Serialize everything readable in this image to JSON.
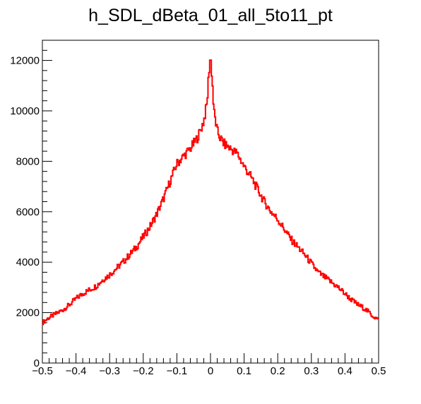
{
  "chart_data": {
    "type": "line",
    "style": "step-histogram",
    "title": "h_SDL_dBeta_01_all_5to11_pt",
    "xlabel": "",
    "ylabel": "",
    "xlim": [
      -0.5,
      0.5
    ],
    "ylim": [
      0,
      12800
    ],
    "grid": false,
    "legend": "none",
    "x_ticks": [
      "−0.5",
      "−0.4",
      "−0.3",
      "−0.2",
      "−0.1",
      "0",
      "0.1",
      "0.2",
      "0.3",
      "0.4",
      "0.5"
    ],
    "x_tick_values": [
      -0.5,
      -0.4,
      -0.3,
      -0.2,
      -0.1,
      0,
      0.1,
      0.2,
      0.3,
      0.4,
      0.5
    ],
    "y_ticks": [
      "0",
      "2000",
      "4000",
      "6000",
      "8000",
      "10000",
      "12000"
    ],
    "y_tick_values": [
      0,
      2000,
      4000,
      6000,
      8000,
      10000,
      12000
    ],
    "series": [
      {
        "color": "#ff0000",
        "x": [
          -0.5,
          -0.48,
          -0.46,
          -0.44,
          -0.42,
          -0.4,
          -0.38,
          -0.36,
          -0.34,
          -0.32,
          -0.3,
          -0.28,
          -0.26,
          -0.24,
          -0.22,
          -0.2,
          -0.18,
          -0.16,
          -0.14,
          -0.12,
          -0.1,
          -0.08,
          -0.06,
          -0.04,
          -0.03,
          -0.02,
          -0.01,
          -0.005,
          0,
          0.005,
          0.01,
          0.02,
          0.03,
          0.04,
          0.06,
          0.08,
          0.1,
          0.12,
          0.14,
          0.16,
          0.18,
          0.2,
          0.22,
          0.24,
          0.26,
          0.28,
          0.3,
          0.32,
          0.34,
          0.36,
          0.38,
          0.4,
          0.42,
          0.44,
          0.46,
          0.48,
          0.5
        ],
        "y": [
          1600,
          1800,
          1950,
          2100,
          2300,
          2550,
          2750,
          2900,
          3050,
          3300,
          3500,
          3750,
          4000,
          4300,
          4600,
          5000,
          5400,
          5900,
          6500,
          7200,
          7900,
          8200,
          8500,
          8900,
          9200,
          9600,
          10300,
          11500,
          12200,
          11300,
          10000,
          9200,
          8900,
          8700,
          8500,
          8300,
          7800,
          7400,
          6900,
          6400,
          6000,
          5700,
          5300,
          4900,
          4600,
          4300,
          3950,
          3600,
          3400,
          3200,
          3000,
          2750,
          2500,
          2300,
          2150,
          1900,
          1700
        ]
      }
    ]
  }
}
